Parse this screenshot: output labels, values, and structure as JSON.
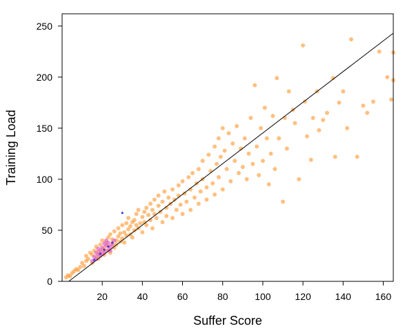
{
  "chart_data": {
    "type": "scatter",
    "xlabel": "Suffer Score",
    "ylabel": "Training Load",
    "xlim": [
      0,
      165
    ],
    "ylim": [
      0,
      262
    ],
    "xticks": [
      20,
      40,
      60,
      80,
      100,
      120,
      140,
      160
    ],
    "yticks": [
      0,
      50,
      100,
      150,
      200,
      250
    ],
    "grid": false,
    "legend": "none",
    "fit_line": {
      "x": [
        0,
        165
      ],
      "y": [
        -5,
        243
      ],
      "color": "#000000"
    },
    "colors": {
      "points": "#ff8c1a",
      "dense_points": "#e066c8",
      "highlight_points": "#3a2bd6",
      "axis": "#000000"
    },
    "series": [
      {
        "points": [
          [
            2,
            4
          ],
          [
            3,
            6
          ],
          [
            4,
            5
          ],
          [
            5,
            8
          ],
          [
            6,
            10
          ],
          [
            7,
            12
          ],
          [
            8,
            11
          ],
          [
            9,
            14
          ],
          [
            10,
            18
          ],
          [
            11,
            15
          ],
          [
            12,
            20
          ],
          [
            12,
            25
          ],
          [
            13,
            22
          ],
          [
            14,
            28
          ],
          [
            15,
            26
          ],
          [
            15,
            18
          ],
          [
            16,
            30
          ],
          [
            17,
            24
          ],
          [
            17,
            34
          ],
          [
            18,
            29
          ],
          [
            18,
            22
          ],
          [
            19,
            36
          ],
          [
            19,
            27
          ],
          [
            20,
            31
          ],
          [
            20,
            40
          ],
          [
            21,
            33
          ],
          [
            21,
            26
          ],
          [
            22,
            38
          ],
          [
            22,
            30
          ],
          [
            23,
            43
          ],
          [
            23,
            35
          ],
          [
            24,
            28
          ],
          [
            24,
            46
          ],
          [
            25,
            37
          ],
          [
            25,
            41
          ],
          [
            26,
            33
          ],
          [
            26,
            49
          ],
          [
            27,
            40
          ],
          [
            27,
            36
          ],
          [
            28,
            44
          ],
          [
            28,
            52
          ],
          [
            29,
            39
          ],
          [
            29,
            47
          ],
          [
            30,
            55
          ],
          [
            30,
            42
          ],
          [
            31,
            48
          ],
          [
            31,
            38
          ],
          [
            32,
            57
          ],
          [
            32,
            45
          ],
          [
            33,
            51
          ],
          [
            33,
            62
          ],
          [
            34,
            46
          ],
          [
            34,
            54
          ],
          [
            35,
            58
          ],
          [
            35,
            43
          ],
          [
            36,
            60
          ],
          [
            36,
            50
          ],
          [
            37,
            66
          ],
          [
            37,
            55
          ],
          [
            38,
            52
          ],
          [
            38,
            70
          ],
          [
            39,
            57
          ],
          [
            40,
            63
          ],
          [
            40,
            48
          ],
          [
            41,
            68
          ],
          [
            41,
            58
          ],
          [
            42,
            72
          ],
          [
            42,
            55
          ],
          [
            43,
            65
          ],
          [
            44,
            76
          ],
          [
            44,
            60
          ],
          [
            45,
            70
          ],
          [
            45,
            52
          ],
          [
            46,
            80
          ],
          [
            46,
            66
          ],
          [
            47,
            62
          ],
          [
            48,
            74
          ],
          [
            48,
            84
          ],
          [
            49,
            68
          ],
          [
            50,
            58
          ],
          [
            50,
            78
          ],
          [
            51,
            88
          ],
          [
            52,
            72
          ],
          [
            52,
            64
          ],
          [
            53,
            82
          ],
          [
            54,
            76
          ],
          [
            55,
            90
          ],
          [
            55,
            62
          ],
          [
            56,
            80
          ],
          [
            57,
            70
          ],
          [
            58,
            94
          ],
          [
            58,
            84
          ],
          [
            59,
            75
          ],
          [
            60,
            98
          ],
          [
            60,
            66
          ],
          [
            61,
            86
          ],
          [
            62,
            78
          ],
          [
            63,
            102
          ],
          [
            64,
            90
          ],
          [
            64,
            70
          ],
          [
            65,
            106
          ],
          [
            66,
            82
          ],
          [
            67,
            96
          ],
          [
            68,
            110
          ],
          [
            68,
            76
          ],
          [
            69,
            88
          ],
          [
            70,
            118
          ],
          [
            70,
            100
          ],
          [
            72,
            92
          ],
          [
            72,
            80
          ],
          [
            73,
            124
          ],
          [
            74,
            108
          ],
          [
            75,
            96
          ],
          [
            76,
            132
          ],
          [
            76,
            85
          ],
          [
            77,
            115
          ],
          [
            78,
            140
          ],
          [
            78,
            102
          ],
          [
            79,
            122
          ],
          [
            80,
            90
          ],
          [
            80,
            150
          ],
          [
            81,
            128
          ],
          [
            82,
            110
          ],
          [
            83,
            145
          ],
          [
            84,
            98
          ],
          [
            85,
            135
          ],
          [
            86,
            118
          ],
          [
            87,
            152
          ],
          [
            88,
            106
          ],
          [
            89,
            130
          ],
          [
            90,
            112
          ],
          [
            91,
            140
          ],
          [
            92,
            100
          ],
          [
            93,
            125
          ],
          [
            94,
            160
          ],
          [
            95,
            115
          ],
          [
            96,
            192
          ],
          [
            97,
            132
          ],
          [
            98,
            104
          ],
          [
            99,
            150
          ],
          [
            100,
            118
          ],
          [
            101,
            170
          ],
          [
            102,
            140
          ],
          [
            103,
            95
          ],
          [
            104,
            125
          ],
          [
            105,
            162
          ],
          [
            106,
            110
          ],
          [
            107,
            199
          ],
          [
            108,
            140
          ],
          [
            110,
            78
          ],
          [
            111,
            160
          ],
          [
            112,
            130
          ],
          [
            113,
            186
          ],
          [
            115,
            168
          ],
          [
            116,
            155
          ],
          [
            118,
            100
          ],
          [
            120,
            231
          ],
          [
            121,
            176
          ],
          [
            122,
            142
          ],
          [
            124,
            119
          ],
          [
            125,
            160
          ],
          [
            127,
            186
          ],
          [
            128,
            148
          ],
          [
            130,
            158
          ],
          [
            132,
            165
          ],
          [
            135,
            199
          ],
          [
            136,
            122
          ],
          [
            138,
            175
          ],
          [
            140,
            186
          ],
          [
            142,
            150
          ],
          [
            144,
            237
          ],
          [
            147,
            122
          ],
          [
            150,
            172
          ],
          [
            152,
            165
          ],
          [
            155,
            176
          ],
          [
            158,
            225
          ],
          [
            162,
            200
          ],
          [
            164,
            178
          ],
          [
            165,
            224
          ],
          [
            165,
            197
          ]
        ]
      },
      {
        "points": [
          [
            15,
            20
          ],
          [
            16,
            24
          ],
          [
            17,
            28
          ],
          [
            18,
            26
          ],
          [
            19,
            30
          ],
          [
            20,
            33
          ],
          [
            21,
            29
          ],
          [
            22,
            35
          ],
          [
            23,
            38
          ],
          [
            24,
            34
          ],
          [
            18,
            32
          ],
          [
            20,
            27
          ],
          [
            22,
            40
          ],
          [
            24,
            30
          ],
          [
            19,
            25
          ],
          [
            21,
            37
          ],
          [
            23,
            31
          ],
          [
            25,
            36
          ],
          [
            17,
            22
          ],
          [
            26,
            40
          ]
        ]
      },
      {
        "points": [
          [
            16,
            21
          ],
          [
            19,
            27
          ],
          [
            21,
            31
          ],
          [
            23,
            34
          ],
          [
            25,
            38
          ],
          [
            30,
            67
          ]
        ]
      }
    ]
  }
}
